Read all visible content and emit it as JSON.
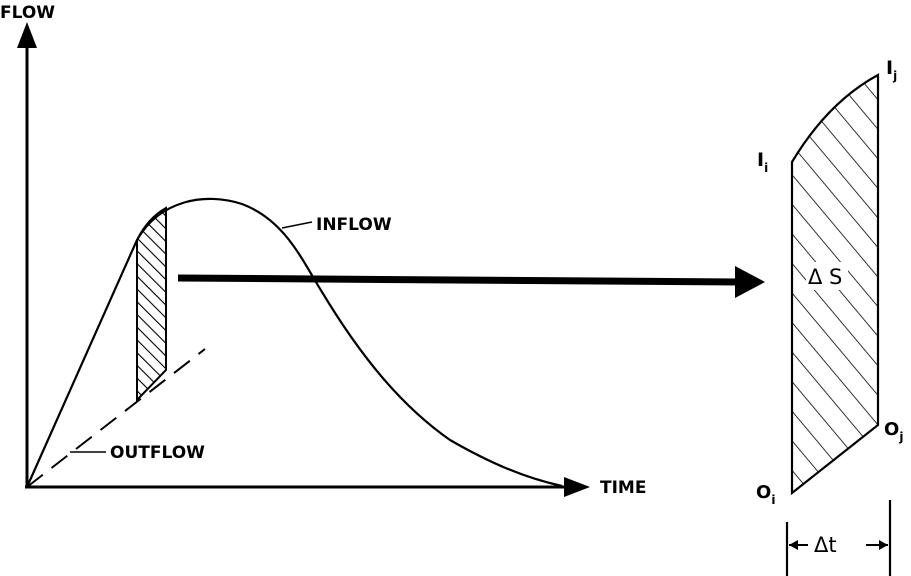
{
  "labels": {
    "y_axis": "FLOW",
    "x_axis": "TIME",
    "inflow": "INFLOW",
    "outflow": "OUTFLOW"
  },
  "symbols": {
    "inflow_i": {
      "base": "I",
      "sub": "i"
    },
    "inflow_j": {
      "base": "I",
      "sub": "j"
    },
    "outflow_i": {
      "base": "O",
      "sub": "i"
    },
    "outflow_j": {
      "base": "O",
      "sub": "j"
    },
    "storage": "Δ S",
    "time_step": "Δt"
  },
  "colors": {
    "ink": "#000000",
    "background": "#ffffff"
  }
}
